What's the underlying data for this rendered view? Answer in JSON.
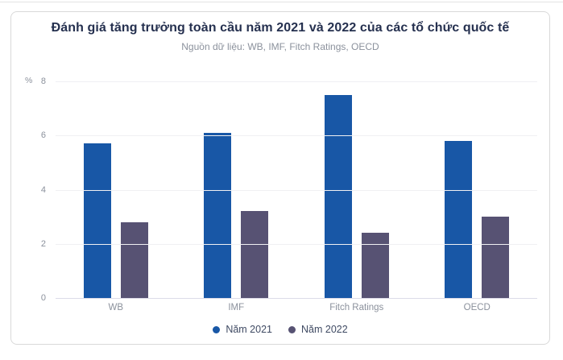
{
  "page": {
    "background": "#ffffff",
    "top_divider_color": "#e3e3e3"
  },
  "card": {
    "background": "#ffffff",
    "border_color": "#d9d9d9"
  },
  "chart_data": {
    "type": "bar",
    "title": "Đánh giá tăng trưởng toàn cầu năm 2021 và 2022 của các tổ chức quốc tế",
    "subtitle": "Nguồn dữ liệu: WB, IMF, Fitch Ratings, OECD",
    "unit_label": "%",
    "categories": [
      "WB",
      "IMF",
      "Fitch Ratings",
      "OECD"
    ],
    "series": [
      {
        "name": "Năm 2021",
        "color": "#1857a6",
        "values": [
          5.7,
          6.1,
          7.5,
          5.8
        ]
      },
      {
        "name": "Năm 2022",
        "color": "#575273",
        "values": [
          2.8,
          3.2,
          2.4,
          3.0
        ]
      }
    ],
    "ylim": [
      0,
      8
    ],
    "ytick_step": 2,
    "ytick_labels": [
      "0",
      "2",
      "4",
      "6",
      "8"
    ],
    "grid": true,
    "legend_position": "bottom",
    "colors": {
      "title": "#25304f",
      "subtitle": "#8b919c",
      "axis_label": "#8b919c",
      "gridline": "#f0f0f3",
      "axis_line": "#dcdbe8",
      "legend_text": "#3f4a63"
    }
  }
}
